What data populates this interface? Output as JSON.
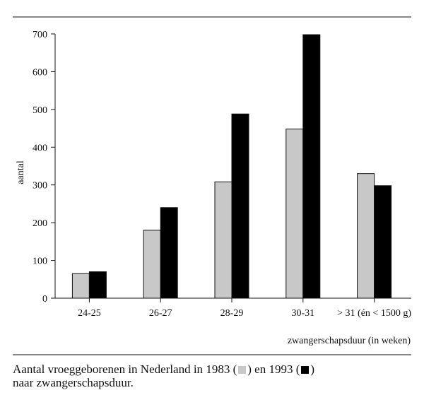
{
  "chart_data": {
    "type": "bar",
    "title": "",
    "xlabel": "zwangerschapsduur (in weken)",
    "ylabel": "aantal",
    "ylim": [
      0,
      700
    ],
    "yticks": [
      "0",
      "100",
      "200",
      "300",
      "400",
      "500",
      "600",
      "700"
    ],
    "categories": [
      "24-25",
      "26-27",
      "28-29",
      "30-31",
      "> 31 (én < 1500 g)"
    ],
    "series": [
      {
        "name": "1983",
        "color": "#c8c8c8",
        "values": [
          65,
          180,
          308,
          448,
          330
        ]
      },
      {
        "name": "1993",
        "color": "#000000",
        "values": [
          70,
          240,
          488,
          698,
          298
        ]
      }
    ],
    "grid": false
  },
  "caption": {
    "line1_before": "Aantal vroeggeborenen in Nederland in",
    "year1": "1983",
    "mid": "en",
    "year2": "1993",
    "line2": "naar zwangerschapsduur."
  }
}
